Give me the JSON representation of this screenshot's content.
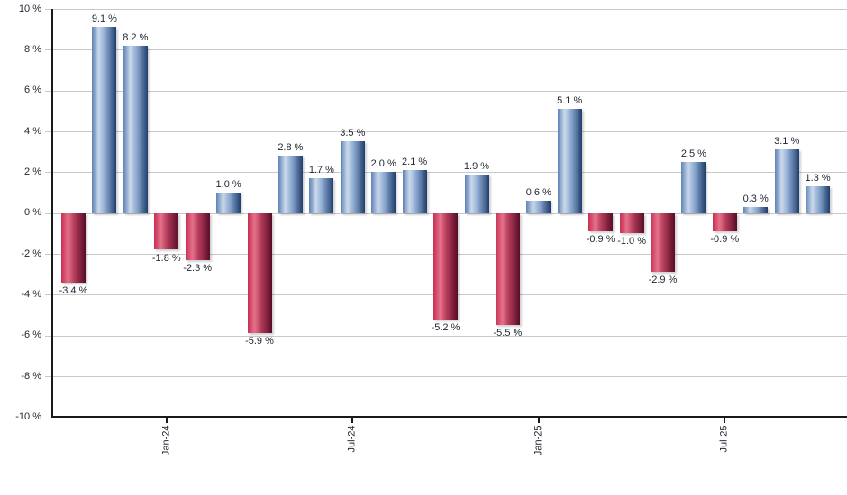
{
  "chart_data": {
    "type": "bar",
    "title": "",
    "xlabel": "",
    "ylabel": "",
    "unit": "%",
    "values": [
      -3.4,
      9.1,
      8.2,
      -1.8,
      -2.3,
      1.0,
      -5.9,
      2.8,
      1.7,
      3.5,
      2.0,
      2.1,
      -5.2,
      1.9,
      -5.5,
      0.6,
      5.1,
      -0.9,
      -1.0,
      -2.9,
      2.5,
      -0.9,
      0.3,
      3.1,
      1.3
    ],
    "bar_labels": [
      "-3.4 %",
      "9.1 %",
      "8.2 %",
      "-1.8 %",
      "-2.3 %",
      "1.0 %",
      "-5.9 %",
      "2.8 %",
      "1.7 %",
      "3.5 %",
      "2.0 %",
      "2.1 %",
      "-5.2 %",
      "1.9 %",
      "-5.5 %",
      "0.6 %",
      "5.1 %",
      "-0.9 %",
      "-1.0 %",
      "-2.9 %",
      "2.5 %",
      "-0.9 %",
      "0.3 %",
      "3.1 %",
      "1.3 %"
    ],
    "y_axis": {
      "min": -10,
      "max": 10,
      "step": 2,
      "tick_labels": [
        "10 %",
        "8 %",
        "6 %",
        "4 %",
        "2 %",
        "0 %",
        "-2 %",
        "-4 %",
        "-6 %",
        "-8 %",
        "-10 %"
      ]
    },
    "x_axis": {
      "ticks": [
        {
          "label": "Jan-24",
          "bar_index": 3
        },
        {
          "label": "Jul-24",
          "bar_index": 9
        },
        {
          "label": "Jan-25",
          "bar_index": 15
        },
        {
          "label": "Jul-25",
          "bar_index": 21
        }
      ]
    },
    "legend": "none",
    "grid": "on",
    "colors": {
      "grid": "#c9c9c9",
      "axis": "#1a1a1a",
      "text": "#1f2430",
      "positive_gradient": {
        "edge": "#5d82b6",
        "light": "#cbd9ec",
        "mid": "#8aa8d0",
        "dark": "#203e6c"
      },
      "negative_gradient": {
        "edge": "#c82e52",
        "light": "#e4718b",
        "mid": "#b23a58",
        "dark": "#570d29"
      }
    }
  }
}
